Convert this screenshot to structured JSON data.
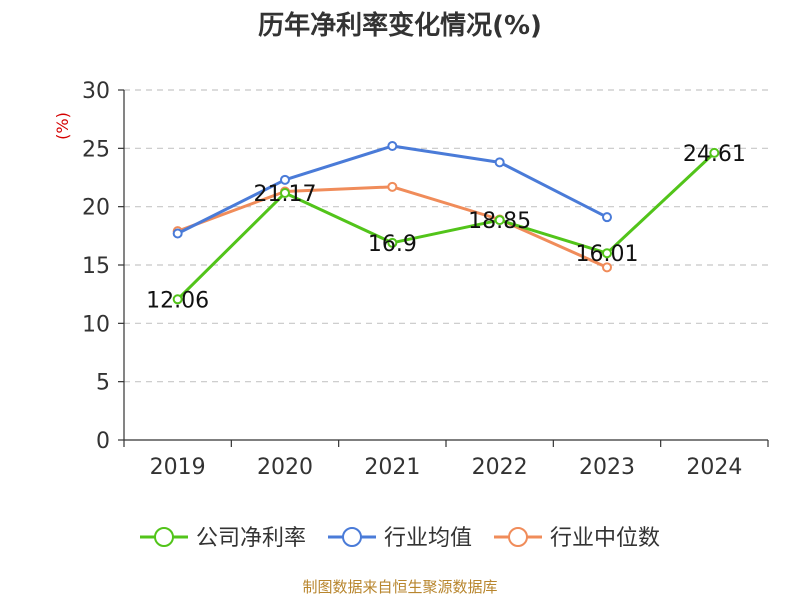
{
  "chart_data": {
    "type": "line",
    "title": "历年净利率变化情况(%)",
    "unit_label": "(%)",
    "categories": [
      "2019",
      "2020",
      "2021",
      "2022",
      "2023",
      "2024"
    ],
    "ylim": [
      0,
      30
    ],
    "yticks": [
      0,
      5,
      10,
      15,
      20,
      25,
      30
    ],
    "grid": true,
    "legend_position": "bottom",
    "series": [
      {
        "name": "公司净利率",
        "color": "#52c41a",
        "values": [
          12.06,
          21.17,
          16.9,
          18.85,
          16.01,
          24.61
        ],
        "data_labels": [
          "12.06",
          "21.17",
          "16.9",
          "18.85",
          "16.01",
          "24.61"
        ]
      },
      {
        "name": "行业均值",
        "color": "#4a7bd8",
        "values": [
          17.7,
          22.3,
          25.2,
          23.8,
          19.1,
          null
        ]
      },
      {
        "name": "行业中位数",
        "color": "#f08c5a",
        "values": [
          17.9,
          21.3,
          21.7,
          18.9,
          14.8,
          null
        ]
      }
    ]
  },
  "source_text": "制图数据来自恒生聚源数据库"
}
